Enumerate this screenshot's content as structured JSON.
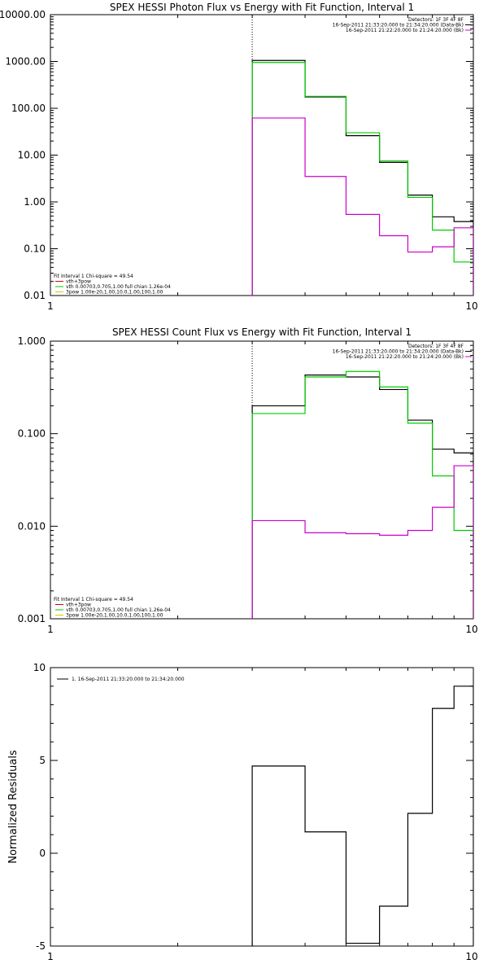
{
  "chart_data": [
    {
      "type": "line",
      "step": true,
      "title": "SPEX HESSI Photon Flux vs Energy with Fit Function, Interval 1",
      "xlabel": "",
      "ylabel": "",
      "xscale": "log",
      "yscale": "log",
      "xlim": [
        1,
        10
      ],
      "ylim": [
        0.01,
        10000
      ],
      "x_tick_labels": [
        "1",
        "10"
      ],
      "y_ticks": [
        0.01,
        0.1,
        1,
        10,
        100,
        1000,
        10000
      ],
      "y_tick_labels": [
        "0.01",
        "0.10",
        "1.00",
        "10.00",
        "100.00",
        "1000.00",
        "10000.00"
      ],
      "dotted_line_x": 3,
      "bin_edges": [
        3,
        4,
        5,
        6,
        7,
        8,
        9,
        10
      ],
      "series": [
        {
          "color": "#000000",
          "values": [
            1050,
            175,
            26,
            7.0,
            1.4,
            0.48,
            0.38
          ]
        },
        {
          "color": "#00cc00",
          "values": [
            950,
            180,
            30,
            7.5,
            1.25,
            0.25,
            0.052
          ]
        },
        {
          "color": "#cc00cc",
          "values": [
            62,
            3.5,
            0.54,
            0.19,
            0.085,
            0.11,
            0.28
          ]
        }
      ],
      "header_lines": [
        {
          "text": "Detectors: 1F 3F 4F 8F",
          "color": "#000000"
        },
        {
          "text": "16-Sep-2011 21:33:20.000 to 21:34:20.000 (Data-Bk)",
          "color": "#000000"
        },
        {
          "text": "16-Sep-2011 21:22:20.000 to 21:24:20.000 (Bk)",
          "color": "#cc00cc"
        }
      ],
      "legend_entries": [
        {
          "text": "Fit Interval 1    Chi-square = 49.54",
          "color": ""
        },
        {
          "text": "vth+3pow",
          "color": "#cc0000"
        },
        {
          "text": "vth 0.00703,0.705,1.00   full chian 1.26e-04",
          "color": "#00cc00"
        },
        {
          "text": "3pow 1.00e-20,1.00,10.0,1.00,100,1.00",
          "color": "#e8c000"
        }
      ]
    },
    {
      "type": "line",
      "step": true,
      "title": "SPEX HESSI Count Flux vs Energy with Fit Function, Interval 1",
      "xlabel": "",
      "ylabel": "",
      "xscale": "log",
      "yscale": "log",
      "xlim": [
        1,
        10
      ],
      "ylim": [
        0.001,
        1
      ],
      "x_tick_labels": [
        "1",
        "10"
      ],
      "y_ticks": [
        0.001,
        0.01,
        0.1,
        1
      ],
      "y_tick_labels": [
        "0.001",
        "0.010",
        "0.100",
        "1.000"
      ],
      "dotted_line_x": 3,
      "bin_edges": [
        3,
        4,
        5,
        6,
        7,
        8,
        9,
        10
      ],
      "series": [
        {
          "color": "#000000",
          "values": [
            0.2,
            0.43,
            0.41,
            0.3,
            0.14,
            0.068,
            0.062
          ]
        },
        {
          "color": "#00cc00",
          "values": [
            0.165,
            0.41,
            0.47,
            0.32,
            0.13,
            0.035,
            0.009
          ]
        },
        {
          "color": "#cc00cc",
          "values": [
            0.0115,
            0.0085,
            0.0083,
            0.008,
            0.009,
            0.016,
            0.045
          ]
        }
      ],
      "header_lines": [
        {
          "text": "Detectors: 1F 3F 4F 8F",
          "color": "#000000"
        },
        {
          "text": "16-Sep-2011 21:33:20.000 to 21:34:20.000 (Data-Bk)",
          "color": "#000000"
        },
        {
          "text": "16-Sep-2011 21:22:20.000 to 21:24:20.000 (Bk)",
          "color": "#cc00cc"
        }
      ],
      "legend_entries": [
        {
          "text": "Fit Interval 1    Chi-square = 49.54",
          "color": ""
        },
        {
          "text": "vth+3pow",
          "color": "#cc0000"
        },
        {
          "text": "vth 0.00703,0.705,1.00   full chian 1.26e-04",
          "color": "#00cc00"
        },
        {
          "text": "3pow 1.00e-20,1.00,10.0,1.00,100,1.00",
          "color": "#e8c000"
        }
      ]
    },
    {
      "type": "line",
      "step": true,
      "title": "",
      "xlabel": "",
      "ylabel": "Normalized Residuals",
      "xscale": "log",
      "yscale": "linear",
      "xlim": [
        1,
        10
      ],
      "ylim": [
        -5,
        10
      ],
      "x_tick_labels": [
        "1",
        "10"
      ],
      "y_ticks": [
        -5,
        0,
        5,
        10
      ],
      "y_tick_labels": [
        "-5",
        "0",
        "5",
        "10"
      ],
      "bin_edges": [
        3,
        4,
        5,
        6,
        7,
        8,
        9,
        10
      ],
      "series": [
        {
          "color": "#000000",
          "values": [
            4.7,
            1.15,
            -4.85,
            -2.85,
            2.15,
            7.8,
            9.0
          ]
        }
      ],
      "legend_entries": [
        {
          "text": "1. 16-Sep-2011 21:33:20.000 to 21:34:20.000",
          "color": "#000000"
        }
      ]
    }
  ]
}
